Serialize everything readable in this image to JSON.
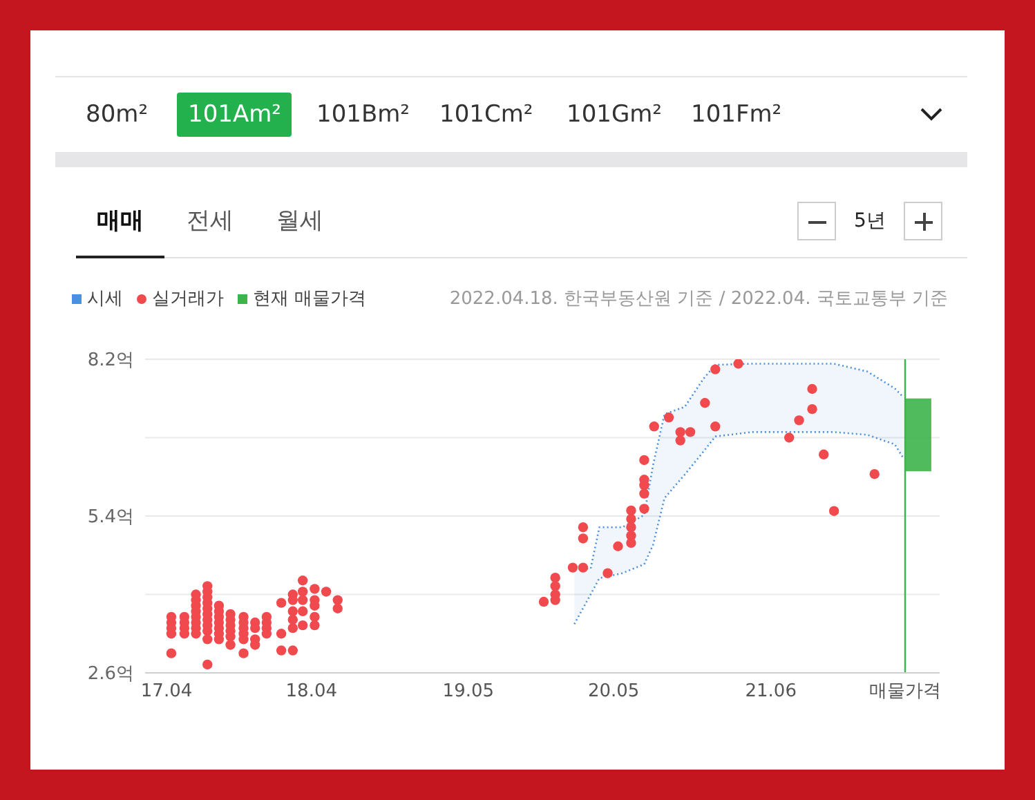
{
  "chart_data": [
    {
      "type": "other",
      "annotations": [
        "80m²",
        "101Am²",
        "101Bm²",
        "101Cm²",
        "101Gm²",
        "101Fm²",
        "매매",
        "전세",
        "월세",
        "5년"
      ]
    },
    {
      "type": "scatter",
      "legend": "top left",
      "grid": "y",
      "annotations": [
        "2022.04.18. 한국부동산원 기준 / 2022.04. 국토교통부 기준"
      ],
      "xlim": [
        "2017-02-06",
        "2022-07-31"
      ],
      "xticks": [
        {
          "value": "2017-04",
          "label": "17.04"
        },
        {
          "value": "2018-04",
          "label": "18.04"
        },
        {
          "value": "2019-05",
          "label": "19.05"
        },
        {
          "value": "2020-05",
          "label": "20.05"
        },
        {
          "value": "2021-06",
          "label": "21.06"
        },
        {
          "value": "2022-05-05",
          "label": "매물가격"
        }
      ],
      "ylim": [
        2.6,
        8.2
      ],
      "yticks": [
        {
          "value": 2.6,
          "label": "2.6억"
        },
        {
          "value": 4.0,
          "label": null
        },
        {
          "value": 5.4,
          "label": "5.4억"
        },
        {
          "value": 6.8,
          "label": null
        },
        {
          "value": 8.2,
          "label": "8.2억"
        }
      ],
      "ref_lines": [
        {
          "axis": "x",
          "value": "2022-05-05",
          "label": null,
          "color": "#3cb44b"
        }
      ],
      "series": [
        {
          "name": "시세",
          "type": "line",
          "color": "#4a90e2",
          "line_style": "dotted",
          "x": [
            "2020-01-23",
            "2020-03-04",
            "2020-03-26",
            "2020-05-23",
            "2020-07-17",
            "2020-08-08",
            "2020-09-06",
            "2020-10-27",
            "2020-12-13",
            "2021-01-12",
            "2021-04-13",
            "2021-11-07",
            "2022-01-30",
            "2022-04-09",
            "2022-05-01"
          ],
          "values": [
            4.46,
            4.46,
            5.2,
            5.2,
            5.42,
            6.3,
            7.22,
            7.35,
            7.85,
            8.1,
            8.12,
            8.12,
            7.98,
            7.68,
            7.52
          ],
          "lower": [
            3.47,
            4.0,
            4.29,
            4.38,
            4.54,
            4.88,
            5.72,
            6.14,
            6.55,
            6.82,
            6.9,
            6.9,
            6.85,
            6.68,
            6.43
          ],
          "upper": [
            4.46,
            4.46,
            5.2,
            5.2,
            5.42,
            6.3,
            7.22,
            7.35,
            7.85,
            8.1,
            8.12,
            8.12,
            7.98,
            7.68,
            7.52
          ]
        },
        {
          "type": "line",
          "color": "#4a90e2",
          "line_style": "dotted",
          "x": [
            "2020-01-23",
            "2020-03-04",
            "2020-03-26",
            "2020-05-23",
            "2020-07-17",
            "2020-08-08",
            "2020-09-06",
            "2020-10-27",
            "2020-12-13",
            "2021-01-12",
            "2021-04-13",
            "2021-11-07",
            "2022-01-30",
            "2022-04-09",
            "2022-05-01"
          ],
          "values": [
            3.47,
            4.0,
            4.29,
            4.38,
            4.54,
            4.88,
            5.72,
            6.14,
            6.55,
            6.82,
            6.9,
            6.9,
            6.85,
            6.68,
            6.43
          ]
        },
        {
          "name": "실거래가",
          "type": "scatter",
          "color": "#f04a4f",
          "marker": "circle",
          "x": [
            "2017-04-13",
            "2017-04-13",
            "2017-04-13",
            "2017-04-13",
            "2017-04-13",
            "2017-05-16",
            "2017-05-16",
            "2017-05-16",
            "2017-05-16",
            "2017-06-14",
            "2017-06-14",
            "2017-06-14",
            "2017-06-14",
            "2017-06-14",
            "2017-06-14",
            "2017-06-14",
            "2017-06-14",
            "2017-07-13",
            "2017-07-13",
            "2017-07-13",
            "2017-07-13",
            "2017-07-13",
            "2017-07-13",
            "2017-07-13",
            "2017-07-13",
            "2017-07-13",
            "2017-07-13",
            "2017-07-13",
            "2017-08-11",
            "2017-08-11",
            "2017-08-11",
            "2017-08-11",
            "2017-08-11",
            "2017-08-11",
            "2017-08-11",
            "2017-09-09",
            "2017-09-09",
            "2017-09-09",
            "2017-09-09",
            "2017-09-09",
            "2017-09-09",
            "2017-10-12",
            "2017-10-12",
            "2017-10-12",
            "2017-10-12",
            "2017-10-12",
            "2017-10-12",
            "2017-11-10",
            "2017-11-10",
            "2017-11-10",
            "2017-11-10",
            "2017-12-09",
            "2017-12-09",
            "2017-12-09",
            "2017-12-09",
            "2018-01-15",
            "2018-01-15",
            "2018-01-15",
            "2018-02-13",
            "2018-02-13",
            "2018-02-13",
            "2018-02-13",
            "2018-02-13",
            "2018-02-13",
            "2018-03-10",
            "2018-03-10",
            "2018-03-10",
            "2018-03-10",
            "2018-03-10",
            "2018-04-09",
            "2018-04-09",
            "2018-04-09",
            "2018-04-09",
            "2018-04-09",
            "2018-05-08",
            "2018-06-06",
            "2018-06-06",
            "2019-11-07",
            "2019-12-06",
            "2019-12-06",
            "2019-12-06",
            "2019-12-06",
            "2020-01-19",
            "2020-02-14",
            "2020-02-14",
            "2020-02-14",
            "2020-04-16",
            "2020-05-12",
            "2020-06-14",
            "2020-06-14",
            "2020-06-14",
            "2020-06-14",
            "2020-06-14",
            "2020-07-17",
            "2020-07-17",
            "2020-07-17",
            "2020-07-17",
            "2020-07-17",
            "2020-08-11",
            "2020-09-17",
            "2020-10-16",
            "2020-10-16",
            "2020-11-10",
            "2020-12-17",
            "2021-01-12",
            "2021-01-12",
            "2021-03-11",
            "2021-07-17",
            "2021-08-11",
            "2021-09-13",
            "2021-09-13",
            "2021-10-12",
            "2021-11-07",
            "2022-02-17"
          ],
          "values": [
            3.6,
            3.5,
            3.4,
            3.3,
            2.95,
            3.6,
            3.5,
            3.4,
            3.3,
            4.0,
            3.9,
            3.8,
            3.7,
            3.6,
            3.5,
            3.4,
            3.3,
            4.15,
            4.05,
            3.95,
            3.85,
            3.75,
            3.65,
            3.55,
            3.45,
            3.35,
            3.2,
            2.75,
            3.8,
            3.7,
            3.6,
            3.5,
            3.4,
            3.3,
            3.2,
            3.65,
            3.55,
            3.45,
            3.35,
            3.25,
            3.1,
            3.6,
            3.5,
            3.4,
            3.3,
            3.2,
            2.95,
            3.5,
            3.4,
            3.2,
            3.1,
            3.6,
            3.5,
            3.4,
            3.3,
            3.85,
            3.3,
            3.0,
            4.0,
            3.9,
            3.7,
            3.55,
            3.4,
            3.0,
            4.25,
            4.05,
            3.9,
            3.7,
            3.45,
            4.1,
            3.9,
            3.8,
            3.6,
            3.45,
            4.05,
            3.9,
            3.75,
            3.87,
            4.3,
            4.15,
            4.0,
            3.9,
            4.48,
            4.48,
            5.2,
            5.0,
            4.38,
            4.86,
            5.5,
            5.35,
            5.2,
            5.05,
            4.92,
            6.4,
            6.05,
            5.95,
            5.8,
            5.53,
            7.0,
            7.16,
            6.9,
            6.75,
            6.9,
            7.42,
            8.02,
            7.0,
            8.12,
            6.8,
            7.11,
            7.67,
            7.31,
            6.5,
            5.49,
            6.15
          ]
        },
        {
          "name": "현재 매물가격",
          "type": "bar",
          "color": "#3cb44b",
          "x": [
            "2022-06-07"
          ],
          "base": [
            6.2
          ],
          "values": [
            1.3
          ]
        }
      ]
    }
  ]
}
